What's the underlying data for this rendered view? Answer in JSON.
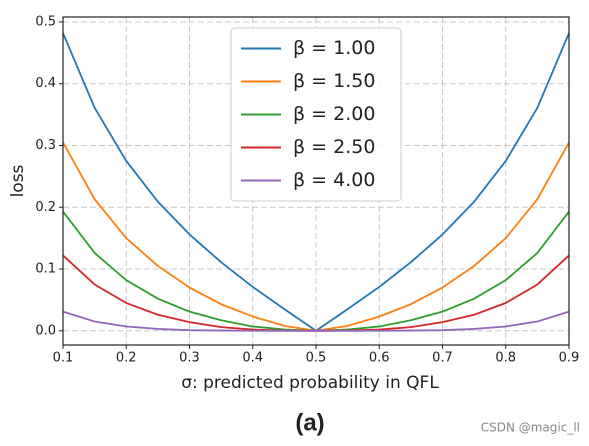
{
  "chart_data": {
    "type": "line",
    "xlabel": "σ: predicted probability in QFL",
    "ylabel": "loss",
    "caption": "(a)",
    "watermark": "CSDN @magic_ll",
    "x": [
      0.1,
      0.15,
      0.2,
      0.25,
      0.3,
      0.35,
      0.4,
      0.45,
      0.5,
      0.55,
      0.6,
      0.65,
      0.7,
      0.75,
      0.8,
      0.85,
      0.9
    ],
    "series": [
      {
        "name": "β = 1.00",
        "color": "#1f77b4",
        "values": [
          0.482,
          0.361,
          0.275,
          0.209,
          0.156,
          0.111,
          0.071,
          0.035,
          0,
          0.035,
          0.071,
          0.111,
          0.156,
          0.209,
          0.275,
          0.361,
          0.482
        ]
      },
      {
        "name": "β = 1.50",
        "color": "#ff7f0e",
        "values": [
          0.305,
          0.213,
          0.15,
          0.105,
          0.07,
          0.043,
          0.023,
          0.008,
          0,
          0.008,
          0.023,
          0.043,
          0.07,
          0.105,
          0.15,
          0.213,
          0.305
        ]
      },
      {
        "name": "β = 2.00",
        "color": "#2ca02c",
        "values": [
          0.193,
          0.126,
          0.082,
          0.052,
          0.031,
          0.017,
          0.007,
          0.002,
          0,
          0.002,
          0.007,
          0.017,
          0.031,
          0.052,
          0.082,
          0.126,
          0.193
        ]
      },
      {
        "name": "β = 2.50",
        "color": "#d62728",
        "values": [
          0.122,
          0.075,
          0.045,
          0.026,
          0.014,
          0.006,
          0.002,
          0.0004,
          0,
          0.0004,
          0.002,
          0.006,
          0.014,
          0.026,
          0.045,
          0.075,
          0.122
        ]
      },
      {
        "name": "β = 4.00",
        "color": "#9467bd",
        "values": [
          0.031,
          0.015,
          0.007,
          0.003,
          0.001,
          0.0004,
          0.0001,
          0,
          0,
          0,
          0.0001,
          0.0004,
          0.001,
          0.003,
          0.007,
          0.015,
          0.031
        ]
      }
    ],
    "xlim": [
      0.1,
      0.9
    ],
    "ylim": [
      -0.023,
      0.508
    ],
    "xticks": [
      0.1,
      0.2,
      0.3,
      0.4,
      0.5,
      0.6,
      0.7,
      0.8,
      0.9
    ],
    "yticks": [
      {
        "value": 0,
        "label": "0.0"
      },
      0.1,
      0.2,
      0.3,
      0.4,
      0.5
    ],
    "grid": true,
    "legend": "upper center"
  }
}
